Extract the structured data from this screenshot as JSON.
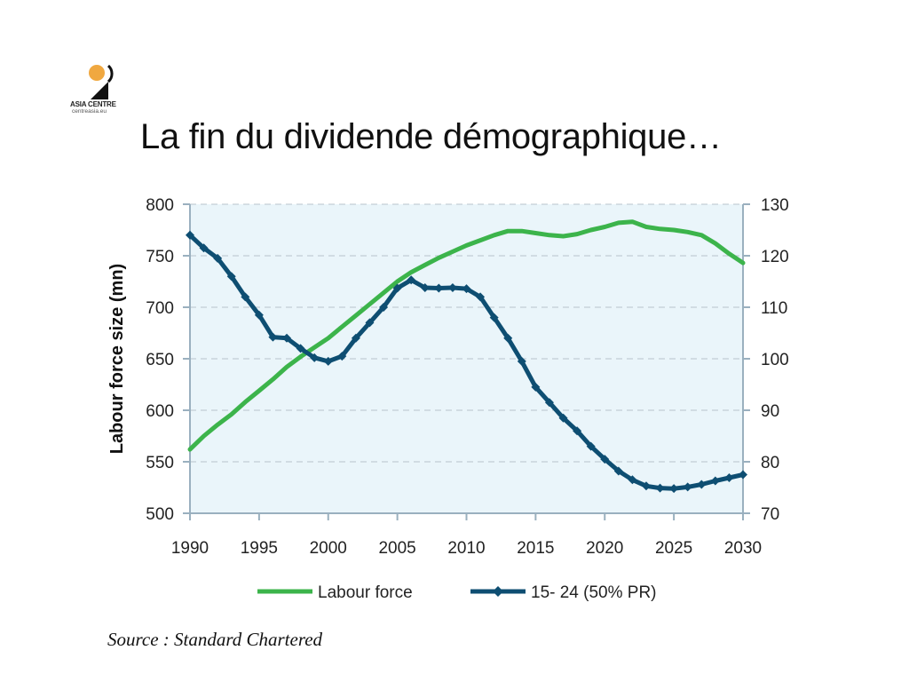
{
  "slide": {
    "title": "La fin du dividende démographique…",
    "source": "Source : Standard Chartered"
  },
  "logo": {
    "name": "ASIA CENTRE",
    "url": "centreasia.eu",
    "colors": {
      "sun": "#f0a840",
      "mark": "#111111"
    }
  },
  "colors": {
    "plot_background": "#eaf5fa",
    "labour_force": "#3cb44b",
    "youth": "#0e4e72",
    "axis": "#9ab0bf",
    "grid": "#b8c4cc"
  },
  "chart_data": {
    "type": "line",
    "title": "",
    "xlabel": "",
    "ylabel": "Labour force size (mn)",
    "y2label": "",
    "xlim": [
      1990,
      2030
    ],
    "ylim": [
      500,
      800
    ],
    "y2lim": [
      70,
      130
    ],
    "xticks": [
      1990,
      1995,
      2000,
      2005,
      2010,
      2015,
      2020,
      2025,
      2030
    ],
    "yticks": [
      500,
      550,
      600,
      650,
      700,
      750,
      800
    ],
    "y2ticks": [
      70,
      80,
      90,
      100,
      110,
      120,
      130
    ],
    "grid": "horizontal dashed",
    "legend_position": "bottom",
    "series": [
      {
        "name": "Labour force",
        "axis": "left",
        "marker": "none",
        "x": [
          1990,
          1991,
          1992,
          1993,
          1994,
          1995,
          1996,
          1997,
          1998,
          1999,
          2000,
          2001,
          2002,
          2003,
          2004,
          2005,
          2006,
          2007,
          2008,
          2009,
          2010,
          2011,
          2012,
          2013,
          2014,
          2015,
          2016,
          2017,
          2018,
          2019,
          2020,
          2021,
          2022,
          2023,
          2024,
          2025,
          2026,
          2027,
          2028,
          2029,
          2030
        ],
        "values": [
          562,
          575,
          586,
          596,
          608,
          619,
          630,
          642,
          652,
          661,
          670,
          681,
          692,
          703,
          714,
          725,
          734,
          741,
          748,
          754,
          760,
          765,
          770,
          774,
          774,
          772,
          770,
          769,
          771,
          775,
          778,
          782,
          783,
          778,
          776,
          775,
          773,
          770,
          762,
          752,
          743
        ]
      },
      {
        "name": "15- 24 (50% PR)",
        "axis": "right",
        "marker": "diamond",
        "x": [
          1990,
          1991,
          1992,
          1993,
          1994,
          1995,
          1996,
          1997,
          1998,
          1999,
          2000,
          2001,
          2002,
          2003,
          2004,
          2005,
          2006,
          2007,
          2008,
          2009,
          2010,
          2011,
          2012,
          2013,
          2014,
          2015,
          2016,
          2017,
          2018,
          2019,
          2020,
          2021,
          2022,
          2023,
          2024,
          2025,
          2026,
          2027,
          2028,
          2029,
          2030
        ],
        "values": [
          124,
          121.5,
          119.5,
          116,
          112,
          108.5,
          104.2,
          104,
          102,
          100.2,
          99.5,
          100.5,
          104,
          107,
          110,
          113.7,
          115.3,
          113.8,
          113.7,
          113.8,
          113.6,
          112,
          108,
          104,
          99.5,
          94.5,
          91.5,
          88.5,
          86,
          83,
          80.5,
          78.2,
          76.5,
          75.3,
          74.9,
          74.8,
          75.1,
          75.6,
          76.3,
          76.9,
          77.5
        ]
      }
    ]
  }
}
